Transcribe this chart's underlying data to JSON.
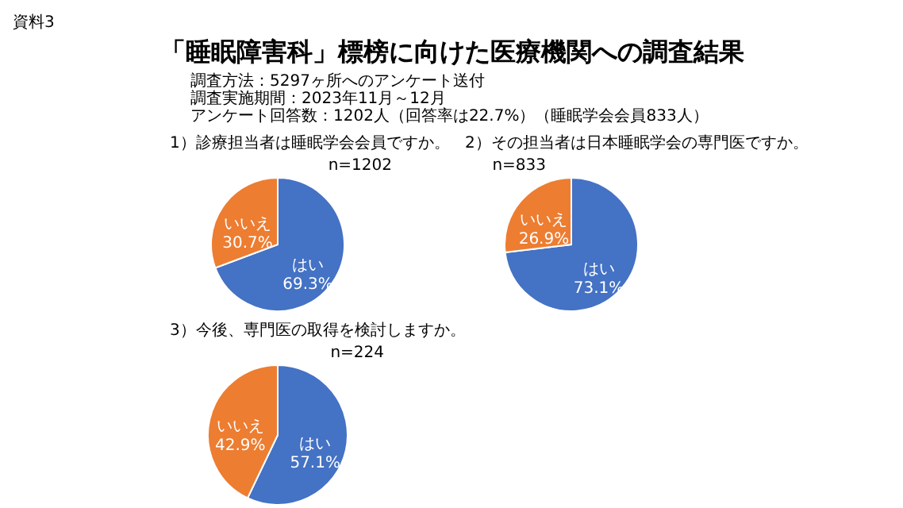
{
  "chart_data": [
    {
      "type": "other",
      "title": "「睡眠障害科」標榜に向けた医療機関への調査結果",
      "annotations": [
        "資料3",
        "調査方法：5297ヶ所へのアンケート送付",
        "調査実施期間：2023年11月～12月",
        "アンケート回答数：1202人（回答率は22.7%）（睡眠学会会員833人）"
      ]
    },
    {
      "type": "pie",
      "title": "1）診療担当者は睡眠学会会員ですか。",
      "annotations": [
        "n=1202"
      ],
      "categories": [
        "はい",
        "いいえ"
      ],
      "values": [
        69.3,
        30.7
      ],
      "value_labels": [
        "69.3%",
        "30.7%"
      ],
      "colors": [
        "#4472c4",
        "#ed7d31"
      ],
      "legend": false
    },
    {
      "type": "pie",
      "title": "2）その担当者は日本睡眠学会の専門医ですか。",
      "annotations": [
        "n=833"
      ],
      "categories": [
        "はい",
        "いいえ"
      ],
      "values": [
        73.1,
        26.9
      ],
      "value_labels": [
        "73.1%",
        "26.9%"
      ],
      "colors": [
        "#4472c4",
        "#ed7d31"
      ],
      "legend": false
    },
    {
      "type": "pie",
      "title": "3）今後、専門医の取得を検討しますか。",
      "annotations": [
        "n=224"
      ],
      "categories": [
        "はい",
        "いいえ"
      ],
      "values": [
        57.1,
        42.9
      ],
      "value_labels": [
        "57.1%",
        "42.9%"
      ],
      "colors": [
        "#4472c4",
        "#ed7d31"
      ],
      "legend": false
    }
  ]
}
